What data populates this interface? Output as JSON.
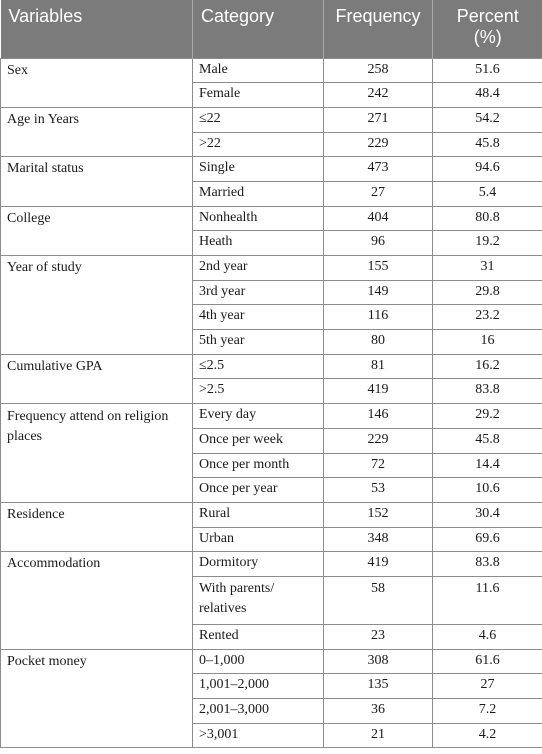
{
  "header": {
    "variables": "Variables",
    "category": "Category",
    "frequency": "Frequency",
    "percent": "Percent (%)"
  },
  "rows": [
    {
      "var": "Sex",
      "cat": "Male",
      "freq": "258",
      "pct": "51.6"
    },
    {
      "cat": "Female",
      "freq": "242",
      "pct": "48.4"
    },
    {
      "var": "Age in Years",
      "cat": "≤22",
      "freq": "271",
      "pct": "54.2"
    },
    {
      "cat": ">22",
      "freq": "229",
      "pct": "45.8"
    },
    {
      "var": "Marital status",
      "cat": "Single",
      "freq": "473",
      "pct": "94.6"
    },
    {
      "cat": "Married",
      "freq": "27",
      "pct": "5.4"
    },
    {
      "var": "College",
      "cat": "Nonhealth",
      "freq": "404",
      "pct": "80.8"
    },
    {
      "cat": "Heath",
      "freq": "96",
      "pct": "19.2"
    },
    {
      "var": "Year of study",
      "cat": "2nd year",
      "freq": "155",
      "pct": "31"
    },
    {
      "cat": "3rd year",
      "freq": "149",
      "pct": "29.8"
    },
    {
      "cat": "4th year",
      "freq": "116",
      "pct": "23.2"
    },
    {
      "cat": "5th year",
      "freq": "80",
      "pct": "16"
    },
    {
      "var": "Cumulative GPA",
      "cat": "≤2.5",
      "freq": "81",
      "pct": "16.2"
    },
    {
      "cat": ">2.5",
      "freq": "419",
      "pct": "83.8"
    },
    {
      "var": "Frequency attend on religion places",
      "cat": "Every day",
      "freq": "146",
      "pct": "29.2"
    },
    {
      "cat": "Once per week",
      "freq": "229",
      "pct": "45.8"
    },
    {
      "cat": "Once per month",
      "freq": "72",
      "pct": "14.4"
    },
    {
      "cat": "Once per year",
      "freq": "53",
      "pct": "10.6"
    },
    {
      "var": "Residence",
      "cat": "Rural",
      "freq": "152",
      "pct": "30.4"
    },
    {
      "cat": "Urban",
      "freq": "348",
      "pct": "69.6"
    },
    {
      "var": "Accommodation",
      "cat": "Dormitory",
      "freq": "419",
      "pct": "83.8"
    },
    {
      "cat": "With parents/ relatives",
      "freq": "58",
      "pct": "11.6"
    },
    {
      "cat": "Rented",
      "freq": "23",
      "pct": "4.6"
    },
    {
      "var": "Pocket money",
      "cat": "0–1,000",
      "freq": "308",
      "pct": "61.6"
    },
    {
      "cat": "1,001–2,000",
      "freq": "135",
      "pct": "27"
    },
    {
      "cat": "2,001–3,000",
      "freq": "36",
      "pct": "7.2"
    },
    {
      "cat": ">3,001",
      "freq": "21",
      "pct": "4.2"
    }
  ]
}
